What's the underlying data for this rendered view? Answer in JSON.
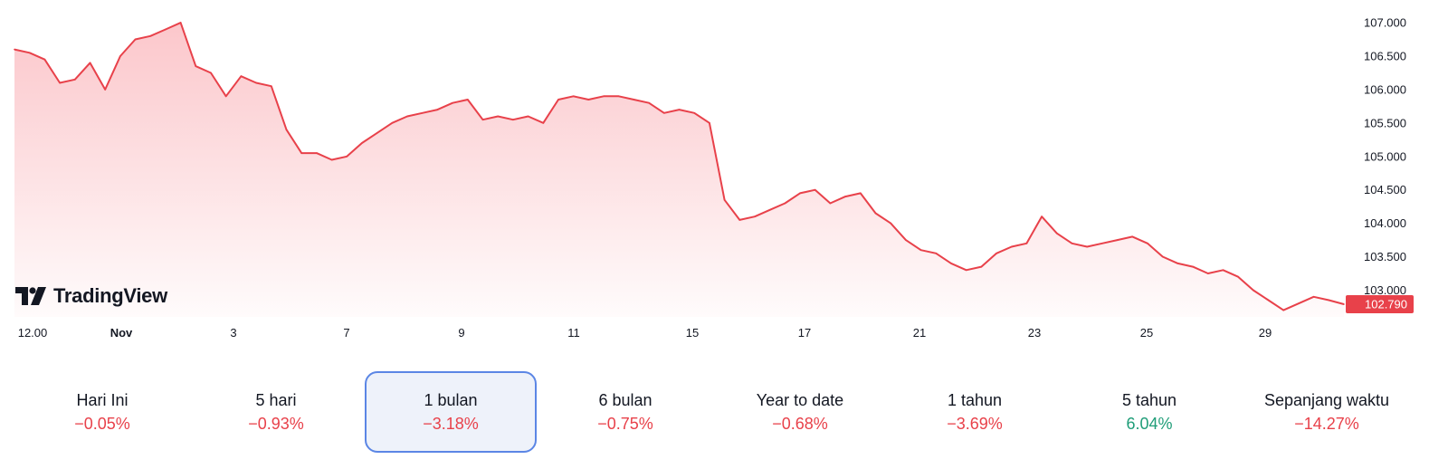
{
  "colors": {
    "line": "#e8414a",
    "negative": "#e8414a",
    "positive": "#1f9d78",
    "accent_border": "#5b86e5"
  },
  "logo": {
    "text": "TradingView",
    "icon": "tradingview-logo-icon"
  },
  "chart_data": {
    "type": "area",
    "yaxis_ticks": [
      "107.000",
      "106.500",
      "106.000",
      "105.500",
      "105.000",
      "104.500",
      "104.000",
      "103.500",
      "103.000"
    ],
    "ylim": [
      102.6,
      107.15
    ],
    "x_tick_labels": [
      "12.00",
      "Nov",
      "3",
      "7",
      "9",
      "11",
      "15",
      "17",
      "21",
      "23",
      "25",
      "29"
    ],
    "last_price": "102.790",
    "series": [
      {
        "values": [
          106.6,
          106.55,
          106.45,
          106.1,
          106.15,
          106.4,
          106.0,
          106.5,
          106.75,
          106.8,
          106.9,
          107.0,
          106.35,
          106.25,
          105.9,
          106.2,
          106.1,
          106.05,
          105.4,
          105.05,
          105.05,
          104.95,
          105.0,
          105.2,
          105.35,
          105.5,
          105.6,
          105.65,
          105.7,
          105.8,
          105.85,
          105.55,
          105.6,
          105.55,
          105.6,
          105.5,
          105.85,
          105.9,
          105.85,
          105.9,
          105.9,
          105.85,
          105.8,
          105.65,
          105.7,
          105.65,
          105.5,
          104.35,
          104.05,
          104.1,
          104.2,
          104.3,
          104.45,
          104.5,
          104.3,
          104.4,
          104.45,
          104.15,
          104.0,
          103.75,
          103.6,
          103.55,
          103.4,
          103.3,
          103.35,
          103.55,
          103.65,
          103.7,
          104.1,
          103.85,
          103.7,
          103.65,
          103.7,
          103.75,
          103.8,
          103.7,
          103.5,
          103.4,
          103.35,
          103.25,
          103.3,
          103.2,
          103.0,
          102.85,
          102.7,
          102.8,
          102.9,
          102.85,
          102.79
        ]
      }
    ]
  },
  "periods": [
    {
      "label": "Hari Ini",
      "value": "−0.05%",
      "sign": "negative"
    },
    {
      "label": "5 hari",
      "value": "−0.93%",
      "sign": "negative"
    },
    {
      "label": "1 bulan",
      "value": "−3.18%",
      "sign": "negative",
      "active": true
    },
    {
      "label": "6 bulan",
      "value": "−0.75%",
      "sign": "negative"
    },
    {
      "label": "Year to date",
      "value": "−0.68%",
      "sign": "negative"
    },
    {
      "label": "1 tahun",
      "value": "−3.69%",
      "sign": "negative"
    },
    {
      "label": "5 tahun",
      "value": "6.04%",
      "sign": "positive"
    },
    {
      "label": "Sepanjang waktu",
      "value": "−14.27%",
      "sign": "negative"
    }
  ]
}
